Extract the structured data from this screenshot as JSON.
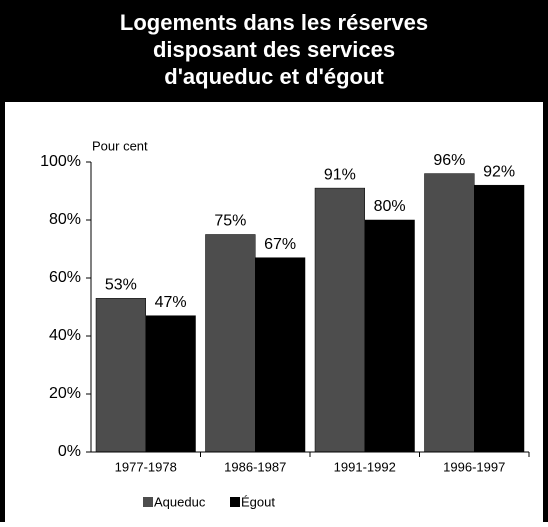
{
  "chart_data": {
    "type": "bar",
    "title": [
      "Logements dans les réserves",
      "disposant des services",
      "d'aqueduc et d'égout"
    ],
    "y_axis_label": "Pour cent",
    "categories": [
      "1977-1978",
      "1986-1987",
      "1991-1992",
      "1996-1997"
    ],
    "series": [
      {
        "name": "Aqueduc",
        "color": "#4d4d4d",
        "values": [
          53,
          75,
          91,
          96
        ],
        "value_labels": [
          "53%",
          "75%",
          "91%",
          "96%"
        ]
      },
      {
        "name": "Égout",
        "color": "#000000",
        "values": [
          47,
          67,
          80,
          92
        ],
        "value_labels": [
          "47%",
          "67%",
          "80%",
          "92%"
        ]
      }
    ],
    "ylim": [
      0,
      100
    ],
    "yticks": [
      {
        "value": 0,
        "label": "0%"
      },
      {
        "value": 20,
        "label": "20%"
      },
      {
        "value": 40,
        "label": "40%"
      },
      {
        "value": 60,
        "label": "60%"
      },
      {
        "value": 80,
        "label": "80%"
      },
      {
        "value": 100,
        "label": "100%"
      }
    ],
    "legend": "bottom"
  }
}
